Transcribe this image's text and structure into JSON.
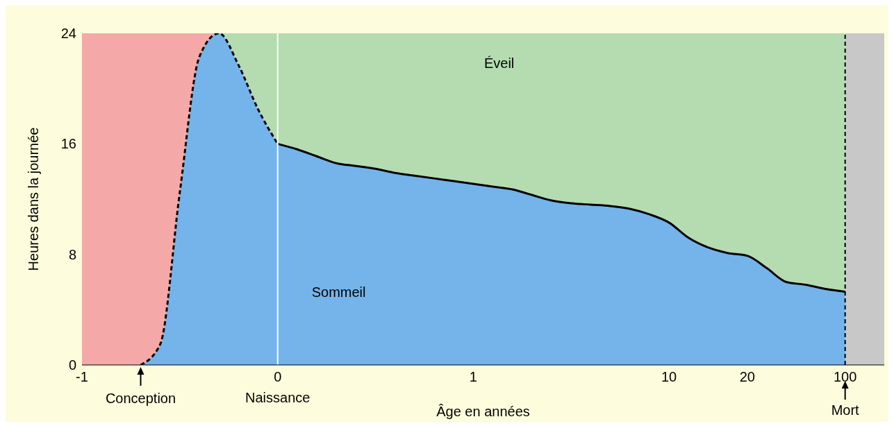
{
  "chart_data": {
    "type": "area",
    "xlabel": "Âge en années",
    "ylabel": "Heures dans la journée",
    "categories": [
      "-1",
      null,
      null,
      null,
      null,
      null,
      null,
      null,
      null,
      null,
      "0",
      null,
      null,
      null,
      null,
      null,
      null,
      null,
      null,
      null,
      "1",
      null,
      null,
      null,
      null,
      null,
      null,
      null,
      null,
      null,
      "10",
      null,
      null,
      null,
      "20",
      null,
      null,
      null,
      null,
      "100",
      null,
      null
    ],
    "ylim": [
      0,
      24
    ],
    "yticks": [
      0,
      8,
      16,
      24
    ],
    "series": [
      {
        "color": "#f4a9a8",
        "values": [
          24,
          24,
          24,
          24,
          24,
          24,
          24,
          24,
          null,
          null,
          null,
          null,
          null,
          null,
          null,
          null,
          null,
          null,
          null,
          null,
          null,
          null,
          null,
          null,
          null,
          null,
          null,
          null,
          null,
          null,
          null,
          null,
          null,
          null,
          null,
          null,
          null,
          null,
          null,
          null,
          null,
          null
        ]
      },
      {
        "color": "#b5dcb0",
        "values": [
          null,
          null,
          null,
          null,
          null,
          null,
          null,
          24,
          24,
          24,
          24,
          24,
          24,
          24,
          24,
          24,
          24,
          24,
          24,
          24,
          24,
          24,
          24,
          24,
          24,
          24,
          24,
          24,
          24,
          24,
          24,
          24,
          24,
          24,
          24,
          24,
          24,
          24,
          24,
          24,
          null,
          null
        ]
      },
      {
        "color": "#c8c8c8",
        "values": [
          null,
          null,
          null,
          null,
          null,
          null,
          null,
          null,
          null,
          null,
          null,
          null,
          null,
          null,
          null,
          null,
          null,
          null,
          null,
          null,
          null,
          null,
          null,
          null,
          null,
          null,
          null,
          null,
          null,
          null,
          null,
          null,
          null,
          null,
          null,
          null,
          null,
          null,
          null,
          24,
          24,
          24
        ]
      },
      {
        "color": "#74b4ea",
        "line_style": "dashed",
        "values": [
          null,
          null,
          null,
          0,
          1.5,
          12.5,
          22.3,
          24,
          21.7,
          18.5,
          16,
          null,
          null,
          null,
          null,
          null,
          null,
          null,
          null,
          null,
          null,
          null,
          null,
          null,
          null,
          null,
          null,
          null,
          null,
          null,
          null,
          null,
          null,
          null,
          null,
          null,
          null,
          null,
          null,
          null,
          null,
          null
        ]
      },
      {
        "color": "#74b4ea",
        "line_style": "solid",
        "values": [
          null,
          null,
          null,
          null,
          null,
          null,
          null,
          null,
          null,
          null,
          16,
          15.6,
          15.1,
          14.6,
          14.4,
          14.2,
          13.9,
          13.7,
          13.5,
          13.3,
          13.1,
          12.9,
          12.7,
          12.3,
          11.9,
          11.7,
          11.6,
          11.5,
          11.3,
          10.9,
          10.3,
          9.2,
          8.5,
          8.1,
          7.9,
          7,
          6,
          5.8,
          5.5,
          5.3,
          null,
          null
        ]
      }
    ],
    "ref_lines": [
      {
        "axis": "x",
        "value": "0",
        "label": "Naissance",
        "color": "#ffffff"
      },
      {
        "axis": "x",
        "value": "100",
        "label": "Mort",
        "color": "#000000",
        "line_style": "dashed"
      }
    ],
    "annotations": [
      "Éveil",
      "Sommeil",
      "Conception"
    ],
    "legend": false
  }
}
